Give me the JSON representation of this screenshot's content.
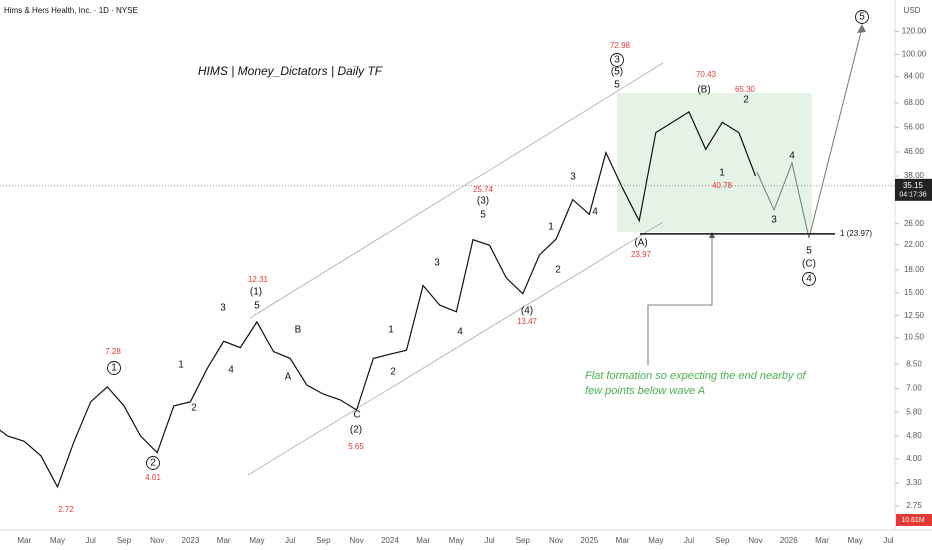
{
  "header": {
    "symbol": "Hims & Hers Health, Inc. · 1D · NYSE",
    "currency": "USD"
  },
  "chart_data": {
    "type": "line",
    "title": "HIMS | Money_Dictators | Daily TF",
    "log_scale": true,
    "color": "#111111",
    "x": [
      "2022-01",
      "2022-02",
      "2022-03",
      "2022-04",
      "2022-05",
      "2022-06",
      "2022-07",
      "2022-08",
      "2022-09",
      "2022-10",
      "2022-11",
      "2022-12",
      "2023-01",
      "2023-02",
      "2023-03",
      "2023-04",
      "2023-05",
      "2023-06",
      "2023-07",
      "2023-08",
      "2023-09",
      "2023-10",
      "2023-11",
      "2023-12",
      "2024-01",
      "2024-02",
      "2024-03",
      "2024-04",
      "2024-05",
      "2024-06",
      "2024-07",
      "2024-08",
      "2024-09",
      "2024-10",
      "2024-11",
      "2024-12",
      "2025-01",
      "2025-02",
      "2025-03",
      "2025-04",
      "2025-05",
      "2025-06",
      "2025-07",
      "2025-08",
      "2025-09",
      "2025-10",
      "2025-11"
    ],
    "values": [
      5.3,
      4.8,
      4.6,
      4.1,
      3.2,
      4.6,
      6.3,
      7.1,
      6.1,
      4.8,
      4.2,
      6.1,
      6.3,
      8.2,
      10.2,
      9.7,
      11.9,
      9.4,
      8.9,
      7.2,
      6.7,
      6.4,
      5.9,
      8.9,
      9.2,
      9.5,
      15.9,
      13.6,
      12.9,
      22.9,
      21.9,
      16.9,
      14.9,
      20.3,
      23,
      31.5,
      28,
      45.8,
      34.5,
      26.6,
      53.7,
      58.3,
      63.3,
      47,
      58.3,
      53.7,
      38
    ],
    "xticks": [
      {
        "value": "2022-03",
        "label": "Mar"
      },
      {
        "value": "2022-05",
        "label": "May"
      },
      {
        "value": "2022-07",
        "label": "Jul"
      },
      {
        "value": "2022-09",
        "label": "Sep"
      },
      {
        "value": "2022-11",
        "label": "Nov"
      },
      {
        "value": "2023-01",
        "label": "2023"
      },
      {
        "value": "2023-03",
        "label": "Mar"
      },
      {
        "value": "2023-05",
        "label": "May"
      },
      {
        "value": "2023-07",
        "label": "Jul"
      },
      {
        "value": "2023-09",
        "label": "Sep"
      },
      {
        "value": "2023-11",
        "label": "Nov"
      },
      {
        "value": "2024-01",
        "label": "2024"
      },
      {
        "value": "2024-03",
        "label": "Mar"
      },
      {
        "value": "2024-05",
        "label": "May"
      },
      {
        "value": "2024-07",
        "label": "Jul"
      },
      {
        "value": "2024-09",
        "label": "Sep"
      },
      {
        "value": "2024-11",
        "label": "Nov"
      },
      {
        "value": "2025-01",
        "label": "2025"
      },
      {
        "value": "2025-03",
        "label": "Mar"
      },
      {
        "value": "2025-05",
        "label": "May"
      },
      {
        "value": "2025-07",
        "label": "Jul"
      },
      {
        "value": "2025-09",
        "label": "Sep"
      },
      {
        "value": "2025-11",
        "label": "Nov"
      },
      {
        "value": "2026-01",
        "label": "2026"
      },
      {
        "value": "2026-03",
        "label": "Mar"
      },
      {
        "value": "2026-05",
        "label": "May"
      },
      {
        "value": "2026-07",
        "label": "Jul"
      }
    ],
    "ylim": [
      2.6,
      138
    ],
    "yticks": [
      {
        "value": 2.75,
        "label": "2.75"
      },
      {
        "value": 3.3,
        "label": "3.30"
      },
      {
        "value": 4,
        "label": "4.00"
      },
      {
        "value": 4.8,
        "label": "4.80"
      },
      {
        "value": 5.8,
        "label": "5.80"
      },
      {
        "value": 7,
        "label": "7.00"
      },
      {
        "value": 8.5,
        "label": "8.50"
      },
      {
        "value": 10.5,
        "label": "10.50"
      },
      {
        "value": 12.5,
        "label": "12.50"
      },
      {
        "value": 15,
        "label": "15.00"
      },
      {
        "value": 18,
        "label": "18.00"
      },
      {
        "value": 22,
        "label": "22.00"
      },
      {
        "value": 26,
        "label": "26.00"
      },
      {
        "value": 32,
        "label": "32.00"
      },
      {
        "value": 38,
        "label": "38.00"
      },
      {
        "value": 46,
        "label": "46.00"
      },
      {
        "value": 56,
        "label": "56.00"
      },
      {
        "value": 68,
        "label": "68.00"
      },
      {
        "value": 84,
        "label": "84.00"
      },
      {
        "value": 100,
        "label": "100.00"
      },
      {
        "value": 120,
        "label": "120.00"
      }
    ],
    "current_price": 35.15,
    "countdown": "04:17:36",
    "level": {
      "value": 23.97,
      "label": "1 (23.97)"
    },
    "volume_label": "10.61M",
    "note": [
      "Flat formation so expecting the end nearby of",
      "few points below wave A"
    ],
    "annotations": [
      {
        "text": "1",
        "circled": true
      },
      {
        "text": "7.28",
        "color": "#e53935"
      },
      {
        "text": "2",
        "circled": true
      },
      {
        "text": "4.01",
        "color": "#e53935"
      },
      {
        "text": "2.72",
        "color": "#e53935"
      },
      {
        "text": "1"
      },
      {
        "text": "2"
      },
      {
        "text": "3"
      },
      {
        "text": "4"
      },
      {
        "text": "5"
      },
      {
        "text": "(1)"
      },
      {
        "text": "12.31",
        "color": "#e53935"
      },
      {
        "text": "B"
      },
      {
        "text": "A"
      },
      {
        "text": "C"
      },
      {
        "text": "(2)"
      },
      {
        "text": "5.65",
        "color": "#e53935"
      },
      {
        "text": "1"
      },
      {
        "text": "2"
      },
      {
        "text": "3"
      },
      {
        "text": "4"
      },
      {
        "text": "5"
      },
      {
        "text": "(3)"
      },
      {
        "text": "25.74",
        "color": "#e53935"
      },
      {
        "text": "(4)"
      },
      {
        "text": "13.47",
        "color": "#e53935"
      },
      {
        "text": "1"
      },
      {
        "text": "2"
      },
      {
        "text": "3"
      },
      {
        "text": "4"
      },
      {
        "text": "5"
      },
      {
        "text": "(5)"
      },
      {
        "text": "3",
        "circled": true
      },
      {
        "text": "72.98",
        "color": "#e53935"
      },
      {
        "text": "(A)"
      },
      {
        "text": "23.97",
        "color": "#e53935"
      },
      {
        "text": "(B)"
      },
      {
        "text": "70.43",
        "color": "#e53935"
      },
      {
        "text": "1"
      },
      {
        "text": "40.78",
        "color": "#e53935"
      },
      {
        "text": "2"
      },
      {
        "text": "65.30",
        "color": "#e53935"
      },
      {
        "text": "3"
      },
      {
        "text": "4"
      },
      {
        "text": "5"
      },
      {
        "text": "(C)"
      },
      {
        "text": "4",
        "circled": true
      },
      {
        "text": "5",
        "circled": true
      }
    ]
  }
}
